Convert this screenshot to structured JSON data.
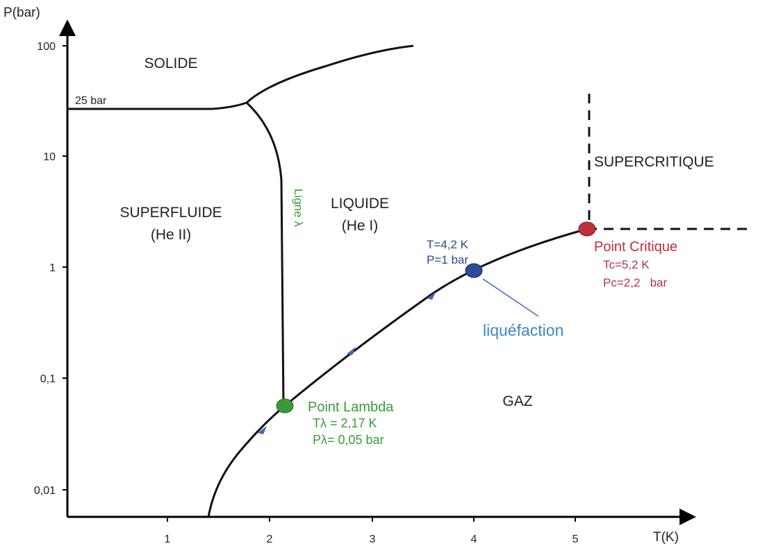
{
  "axes": {
    "y_label": "P(bar)",
    "x_label": "T(K)",
    "x_ticks": [
      "1",
      "2",
      "3",
      "4",
      "5"
    ],
    "y_ticks": [
      "100",
      "10",
      "1",
      "0,1",
      "0,01"
    ]
  },
  "regions": {
    "solid": "SOLIDE",
    "superfluid": "SUPERFLUIDE",
    "superfluid_sub": "(He II)",
    "liquid": "LIQUIDE",
    "liquid_sub": "(He I)",
    "gas": "GAZ",
    "supercritical": "SUPERCRITIQUE"
  },
  "annotations": {
    "solid_pressure": "25 bar",
    "lambda_line": "Ligne λ",
    "boiling_T": "T=4,2 K",
    "boiling_P": "P=1 bar",
    "liquefaction": "liquéfaction",
    "critical_title": "Point Critique",
    "critical_T": "Tc=5,2 K",
    "critical_P": "Pc=2,2   bar",
    "lambda_title": "Point Lambda",
    "lambda_T": "Tλ = 2,17 K",
    "lambda_P": "Pλ= 0,05 bar"
  }
}
